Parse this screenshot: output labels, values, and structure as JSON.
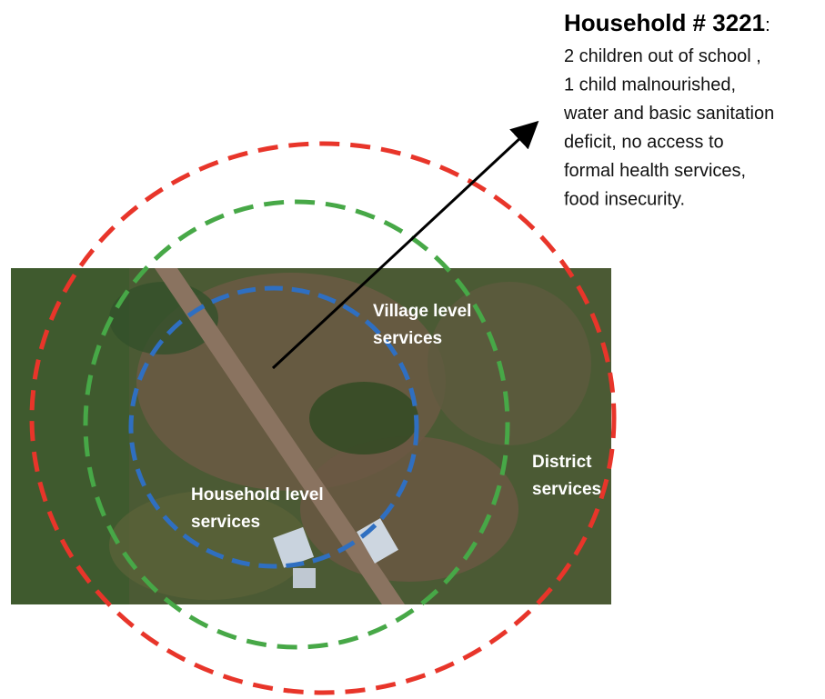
{
  "callout": {
    "title": "Household # 3221",
    "title_suffix": ":",
    "lines": [
      "2 children out of school ,",
      "1 child malnourished,",
      "water and basic sanitation",
      "deficit, no access to",
      "formal health services,",
      "food insecurity."
    ]
  },
  "rings": [
    {
      "label_lines": [
        "Household level",
        "services"
      ]
    },
    {
      "label_lines": [
        "Village level",
        "services"
      ]
    },
    {
      "label_lines": [
        "District",
        "services"
      ]
    }
  ]
}
